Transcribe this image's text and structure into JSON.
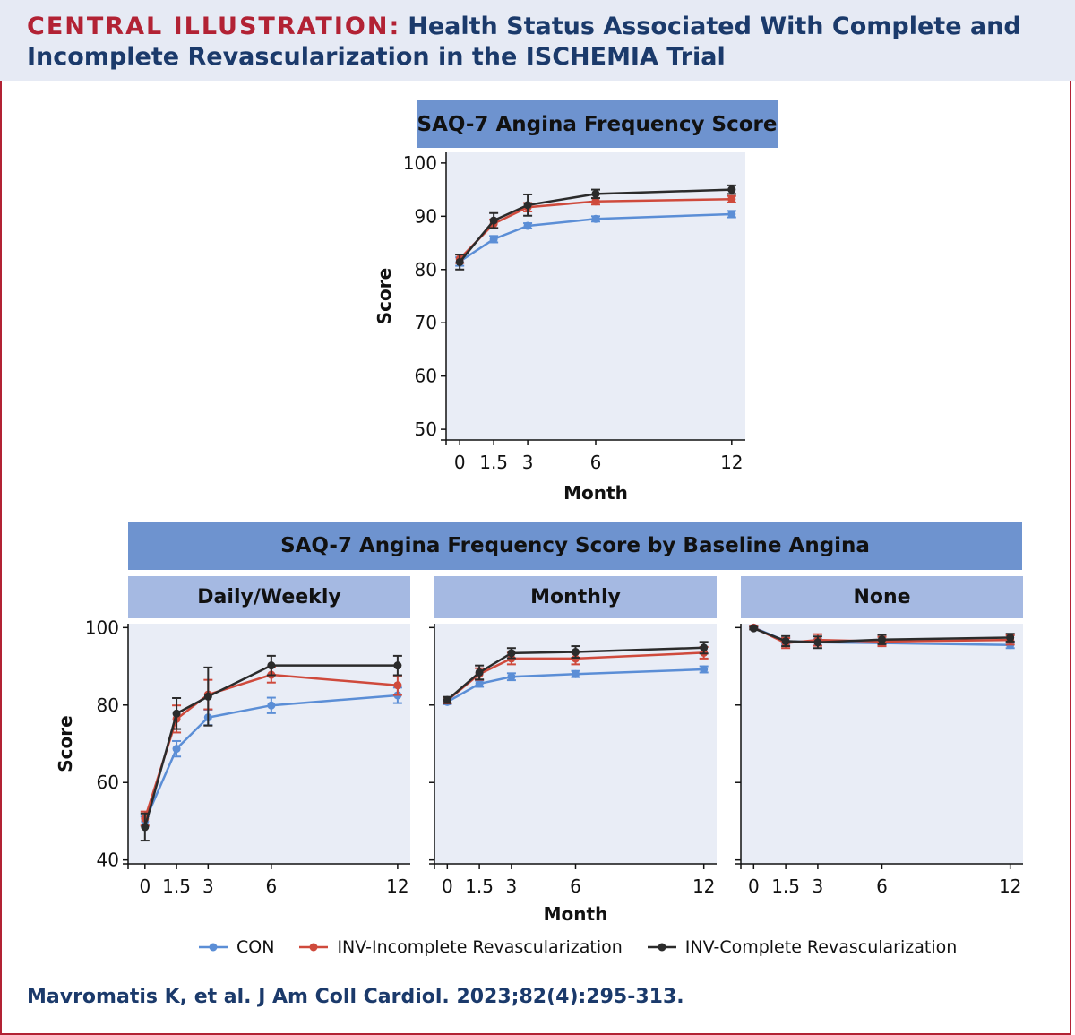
{
  "header": {
    "tag": "CENTRAL ILLUSTRATION:",
    "title": "Health Status Associated With Complete and Incomplete Revascularization in the ISCHEMIA Trial"
  },
  "colors": {
    "CON": "#5b8ed6",
    "INV-Incomplete Revascularization": "#cf4a3c",
    "INV-Complete Revascularization": "#2b2b2b",
    "panel_bg": "#e9edf6"
  },
  "top_banner": "SAQ-7 Angina Frequency Score",
  "wide_banner": "SAQ-7 Angina Frequency Score by Baseline Angina",
  "panel_labels": [
    "Daily/Weekly",
    "Monthly",
    "None"
  ],
  "legend": [
    "CON",
    "INV-Incomplete Revascularization",
    "INV-Complete Revascularization"
  ],
  "citation": "Mavromatis K, et al. J Am Coll Cardiol. 2023;82(4):295-313.",
  "chart_data": [
    {
      "type": "line",
      "title": "SAQ-7 Angina Frequency Score",
      "xlabel": "Month",
      "ylabel": "Score",
      "x": [
        0,
        1.5,
        3,
        6,
        12
      ],
      "xticks": [
        "0",
        "1.5",
        "3",
        "6",
        "12"
      ],
      "yticks": [
        50,
        60,
        70,
        80,
        90,
        100
      ],
      "xlim": [
        -0.6,
        12.6
      ],
      "ylim": [
        48,
        102
      ],
      "series": [
        {
          "name": "CON",
          "values": [
            81.5,
            85.7,
            88.2,
            89.5,
            90.4
          ],
          "err": [
            0.8,
            0.6,
            0.5,
            0.5,
            0.6
          ]
        },
        {
          "name": "INV-Incomplete Revascularization",
          "values": [
            82.0,
            88.6,
            91.7,
            92.8,
            93.2
          ],
          "err": [
            0.8,
            0.8,
            0.8,
            0.6,
            0.6
          ]
        },
        {
          "name": "INV-Complete Revascularization",
          "values": [
            81.4,
            89.2,
            92.1,
            94.2,
            95.0
          ],
          "err": [
            1.4,
            1.4,
            2.0,
            0.8,
            0.8
          ]
        }
      ]
    },
    {
      "type": "line",
      "title": "Daily/Weekly",
      "xlabel": "",
      "ylabel": "Score",
      "x": [
        0,
        1.5,
        3,
        6,
        12
      ],
      "xticks": [
        "0",
        "1.5",
        "3",
        "6",
        "12"
      ],
      "yticks": [
        40,
        60,
        80,
        100
      ],
      "xlim": [
        -0.8,
        12.6
      ],
      "ylim": [
        39,
        101
      ],
      "series": [
        {
          "name": "CON",
          "values": [
            50.0,
            68.7,
            76.8,
            79.9,
            82.5
          ],
          "err": [
            1.2,
            2.0,
            2.0,
            2.0,
            2.0
          ]
        },
        {
          "name": "INV-Incomplete Revascularization",
          "values": [
            50.7,
            76.4,
            82.7,
            87.8,
            85.1
          ],
          "err": [
            1.8,
            3.5,
            3.8,
            2.0,
            2.5
          ]
        },
        {
          "name": "INV-Complete Revascularization",
          "values": [
            48.5,
            77.8,
            82.2,
            90.2,
            90.2
          ],
          "err": [
            3.5,
            4.0,
            7.5,
            2.5,
            2.5
          ]
        }
      ]
    },
    {
      "type": "line",
      "title": "Monthly",
      "xlabel": "Month",
      "ylabel": "",
      "x": [
        0,
        1.5,
        3,
        6,
        12
      ],
      "xticks": [
        "0",
        "1.5",
        "3",
        "6",
        "12"
      ],
      "yticks": [
        40,
        60,
        80,
        100
      ],
      "xlim": [
        -0.6,
        12.6
      ],
      "ylim": [
        39,
        101
      ],
      "series": [
        {
          "name": "CON",
          "values": [
            80.8,
            85.5,
            87.3,
            88.0,
            89.2
          ],
          "err": [
            0.6,
            0.8,
            0.9,
            0.8,
            0.8
          ]
        },
        {
          "name": "INV-Incomplete Revascularization",
          "values": [
            81.2,
            88.0,
            92.0,
            92.0,
            93.5
          ],
          "err": [
            0.8,
            1.5,
            1.5,
            1.5,
            1.5
          ]
        },
        {
          "name": "INV-Complete Revascularization",
          "values": [
            81.3,
            88.4,
            93.4,
            93.7,
            94.8
          ],
          "err": [
            0.8,
            1.8,
            1.3,
            1.5,
            1.5
          ]
        }
      ]
    },
    {
      "type": "line",
      "title": "None",
      "xlabel": "",
      "ylabel": "",
      "x": [
        0,
        1.5,
        3,
        6,
        12
      ],
      "xticks": [
        "0",
        "1.5",
        "3",
        "6",
        "12"
      ],
      "yticks": [
        40,
        60,
        80,
        100
      ],
      "xlim": [
        -0.6,
        12.6
      ],
      "ylim": [
        39,
        101
      ],
      "series": [
        {
          "name": "CON",
          "values": [
            100.0,
            96.5,
            96.2,
            96.0,
            95.5
          ],
          "err": [
            0.3,
            0.8,
            0.8,
            0.8,
            0.8
          ]
        },
        {
          "name": "INV-Incomplete Revascularization",
          "values": [
            100.0,
            96.0,
            96.8,
            96.4,
            96.8
          ],
          "err": [
            0.3,
            1.3,
            1.5,
            1.2,
            1.2
          ]
        },
        {
          "name": "INV-Complete Revascularization",
          "values": [
            99.8,
            96.5,
            96.2,
            96.9,
            97.4
          ],
          "err": [
            0.3,
            1.3,
            1.5,
            1.2,
            1.0
          ]
        }
      ]
    }
  ]
}
